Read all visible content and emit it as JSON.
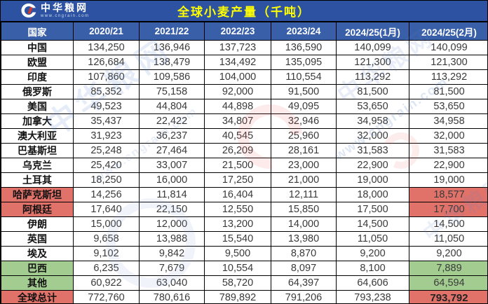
{
  "meta": {
    "title": "全球小麦产量（千吨）"
  },
  "logo": {
    "name": "中华粮网",
    "url": "www.cngrain.com"
  },
  "colors": {
    "title_bg": "#2e52a2",
    "header_bg": "#3a5fa9",
    "title_text": "#ffff00",
    "header_text": "#ffffff",
    "hl_red": "#e0726a",
    "hl_green": "#a3cd90",
    "num_text": "#3a3a3a"
  },
  "watermark": {
    "text": "中华粮网",
    "url": "www.cngrain.com"
  },
  "table": {
    "columns": [
      "国家",
      "2020/21",
      "2021/22",
      "2022/23",
      "2023/24",
      "2024/25(1月)",
      "2024/25(2月)"
    ],
    "rows": [
      {
        "name": "中国",
        "values": [
          "134,250",
          "136,946",
          "137,723",
          "136,590",
          "140,099",
          "140,099"
        ],
        "name_hl": null,
        "last_hl": null,
        "bold": false
      },
      {
        "name": "欧盟",
        "values": [
          "126,684",
          "138,479",
          "134,492",
          "135,095",
          "121,300",
          "121,300"
        ],
        "name_hl": null,
        "last_hl": null,
        "bold": false
      },
      {
        "name": "印度",
        "values": [
          "107,860",
          "109,586",
          "104,000",
          "110,554",
          "113,292",
          "113,292"
        ],
        "name_hl": null,
        "last_hl": null,
        "bold": false
      },
      {
        "name": "俄罗斯",
        "values": [
          "85,352",
          "75,158",
          "92,000",
          "91,500",
          "81,500",
          "81,500"
        ],
        "name_hl": null,
        "last_hl": null,
        "bold": false
      },
      {
        "name": "美国",
        "values": [
          "49,523",
          "44,804",
          "44,898",
          "49,095",
          "53,650",
          "53,650"
        ],
        "name_hl": null,
        "last_hl": null,
        "bold": false
      },
      {
        "name": "加拿大",
        "values": [
          "35,437",
          "22,422",
          "34,807",
          "32,946",
          "34,958",
          "34,958"
        ],
        "name_hl": null,
        "last_hl": null,
        "bold": false
      },
      {
        "name": "澳大利亚",
        "values": [
          "31,923",
          "36,237",
          "40,545",
          "25,960",
          "32,000",
          "32,000"
        ],
        "name_hl": null,
        "last_hl": null,
        "bold": false
      },
      {
        "name": "巴基斯坦",
        "values": [
          "25,248",
          "27,464",
          "26,209",
          "28,161",
          "31,583",
          "31,583"
        ],
        "name_hl": null,
        "last_hl": null,
        "bold": false
      },
      {
        "name": "乌克兰",
        "values": [
          "25,420",
          "33,007",
          "21,500",
          "23,000",
          "22,900",
          "22,900"
        ],
        "name_hl": null,
        "last_hl": null,
        "bold": false
      },
      {
        "name": "土耳其",
        "values": [
          "18,250",
          "16,000",
          "17,250",
          "21,000",
          "19,000",
          "19,000"
        ],
        "name_hl": null,
        "last_hl": null,
        "bold": false
      },
      {
        "name": "哈萨克斯坦",
        "values": [
          "14,256",
          "11,814",
          "16,404",
          "12,111",
          "18,000",
          "18,577"
        ],
        "name_hl": "red",
        "last_hl": "red",
        "bold": false
      },
      {
        "name": "阿根廷",
        "values": [
          "17,640",
          "22,150",
          "12,550",
          "15,850",
          "17,500",
          "17,700"
        ],
        "name_hl": "red",
        "last_hl": "red",
        "bold": false
      },
      {
        "name": "伊朗",
        "values": [
          "15,000",
          "12,000",
          "13,200",
          "14,000",
          "14,500",
          "14,500"
        ],
        "name_hl": null,
        "last_hl": null,
        "bold": false
      },
      {
        "name": "英国",
        "values": [
          "9,658",
          "13,988",
          "15,540",
          "13,980",
          "11,050",
          "11,050"
        ],
        "name_hl": null,
        "last_hl": null,
        "bold": false
      },
      {
        "name": "埃及",
        "values": [
          "9,102",
          "9,842",
          "9,500",
          "8,870",
          "9,200",
          "9,200"
        ],
        "name_hl": null,
        "last_hl": null,
        "bold": false
      },
      {
        "name": "巴西",
        "values": [
          "6,235",
          "7,679",
          "10,554",
          "8,097",
          "8,100",
          "7,889"
        ],
        "name_hl": "green",
        "last_hl": "green",
        "bold": false
      },
      {
        "name": "其他",
        "values": [
          "60,922",
          "63,040",
          "58,720",
          "64,397",
          "64,606",
          "64,594"
        ],
        "name_hl": "green",
        "last_hl": "green",
        "bold": false
      },
      {
        "name": "全球总计",
        "values": [
          "772,760",
          "780,616",
          "789,892",
          "791,206",
          "793,238",
          "793,792"
        ],
        "name_hl": "red",
        "last_hl": "red",
        "bold": true
      }
    ]
  }
}
